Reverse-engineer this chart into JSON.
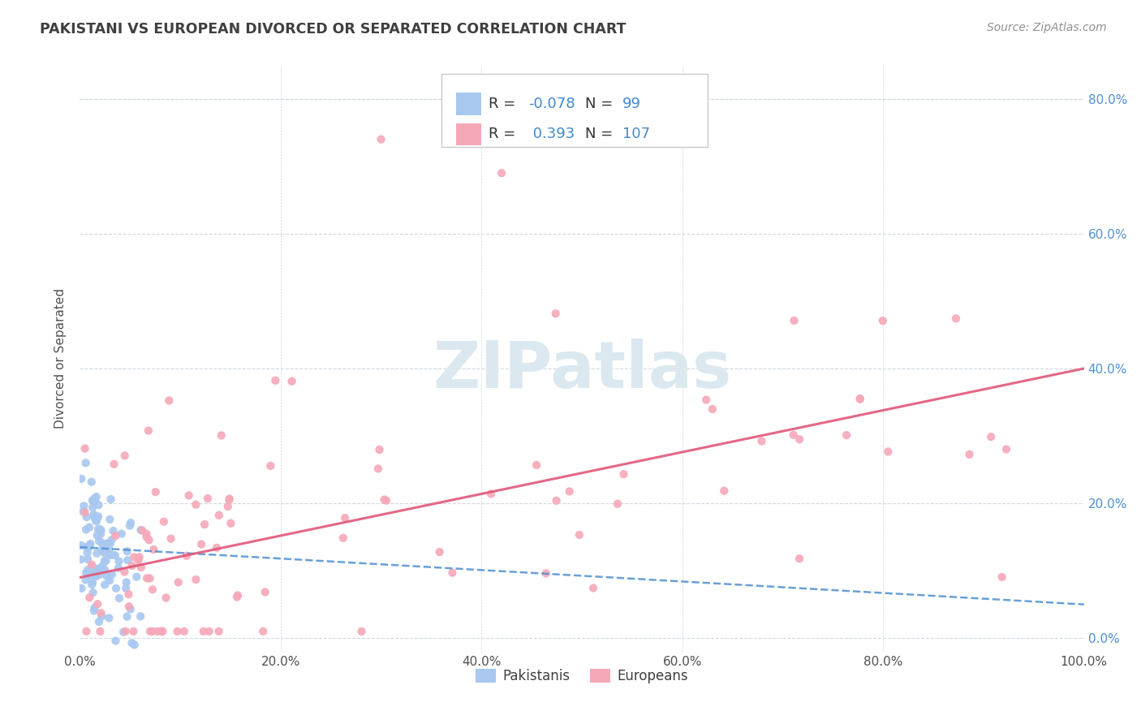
{
  "title": "PAKISTANI VS EUROPEAN DIVORCED OR SEPARATED CORRELATION CHART",
  "source": "Source: ZipAtlas.com",
  "ylabel": "Divorced or Separated",
  "xlim": [
    0,
    1.0
  ],
  "ylim": [
    -0.02,
    0.85
  ],
  "xtick_labels": [
    "0.0%",
    "20.0%",
    "40.0%",
    "60.0%",
    "80.0%",
    "100.0%"
  ],
  "xtick_vals": [
    0.0,
    0.2,
    0.4,
    0.6,
    0.8,
    1.0
  ],
  "ytick_labels": [
    "0.0%",
    "20.0%",
    "40.0%",
    "60.0%",
    "80.0%"
  ],
  "ytick_vals": [
    0.0,
    0.2,
    0.4,
    0.6,
    0.8
  ],
  "blue_color": "#a8c8f0",
  "pink_color": "#f5a8b8",
  "blue_line_color": "#5090d0",
  "pink_line_color": "#e05878",
  "blue_tick_color": "#5090d0",
  "watermark": "ZIPatlas",
  "watermark_color": "#dce8f0",
  "background_color": "#ffffff",
  "grid_color": "#d0d8e0",
  "title_color": "#404040",
  "source_color": "#909090",
  "legend_box_color": "#e8e8e8",
  "legend_text_color": "#333333",
  "legend_val_color": "#4488cc",
  "pak_r": -0.078,
  "pak_n": 99,
  "eur_r": 0.393,
  "eur_n": 107,
  "pak_line_start_y": 0.135,
  "pak_line_end_y": 0.05,
  "eur_line_start_y": 0.09,
  "eur_line_end_y": 0.4
}
